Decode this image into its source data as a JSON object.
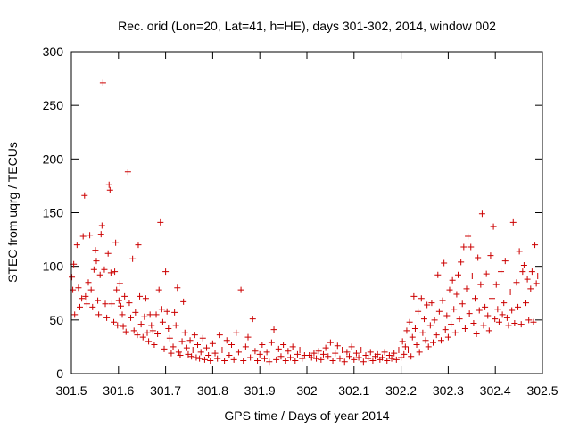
{
  "chart_data": {
    "type": "scatter",
    "title": "Rec. orid (Lon=20, Lat=41, h=HE), days 301-302, 2014, window 002",
    "xlabel": "GPS time / Days of year 2014",
    "ylabel": "STEC from uqrg / TECUs",
    "xlim": [
      301.5,
      302.5
    ],
    "ylim": [
      0,
      300
    ],
    "xticks": [
      "301.5",
      "301.6",
      "301.7",
      "301.8",
      "301.9",
      "302",
      "302.1",
      "302.2",
      "302.3",
      "302.4",
      "302.5"
    ],
    "yticks": [
      "0",
      "50",
      "100",
      "150",
      "200",
      "250",
      "300"
    ],
    "marker": "+",
    "color": "#cc0000",
    "grid": false,
    "points": [
      [
        301.501,
        90
      ],
      [
        301.503,
        78
      ],
      [
        301.505,
        102
      ],
      [
        301.507,
        55
      ],
      [
        301.512,
        120
      ],
      [
        301.515,
        80
      ],
      [
        301.518,
        62
      ],
      [
        301.522,
        70
      ],
      [
        301.525,
        128
      ],
      [
        301.528,
        166
      ],
      [
        301.53,
        72
      ],
      [
        301.533,
        65
      ],
      [
        301.536,
        85
      ],
      [
        301.539,
        129
      ],
      [
        301.542,
        78
      ],
      [
        301.545,
        62
      ],
      [
        301.548,
        97
      ],
      [
        301.551,
        115
      ],
      [
        301.553,
        105
      ],
      [
        301.556,
        68
      ],
      [
        301.558,
        55
      ],
      [
        301.561,
        92
      ],
      [
        301.563,
        130
      ],
      [
        301.565,
        138
      ],
      [
        301.567,
        271
      ],
      [
        301.57,
        97
      ],
      [
        301.572,
        65
      ],
      [
        301.575,
        52
      ],
      [
        301.578,
        112
      ],
      [
        301.58,
        176
      ],
      [
        301.582,
        171
      ],
      [
        301.584,
        94
      ],
      [
        301.586,
        65
      ],
      [
        301.59,
        48
      ],
      [
        301.592,
        95
      ],
      [
        301.594,
        122
      ],
      [
        301.596,
        78
      ],
      [
        301.598,
        45
      ],
      [
        301.601,
        68
      ],
      [
        301.603,
        84
      ],
      [
        301.605,
        63
      ],
      [
        301.608,
        55
      ],
      [
        301.61,
        44
      ],
      [
        301.613,
        72
      ],
      [
        301.616,
        39
      ],
      [
        301.62,
        188
      ],
      [
        301.623,
        66
      ],
      [
        301.626,
        52
      ],
      [
        301.63,
        107
      ],
      [
        301.633,
        40
      ],
      [
        301.636,
        57
      ],
      [
        301.64,
        36
      ],
      [
        301.642,
        120
      ],
      [
        301.645,
        72
      ],
      [
        301.648,
        46
      ],
      [
        301.652,
        34
      ],
      [
        301.655,
        53
      ],
      [
        301.658,
        70
      ],
      [
        301.661,
        38
      ],
      [
        301.664,
        30
      ],
      [
        301.667,
        55
      ],
      [
        301.67,
        45
      ],
      [
        301.673,
        40
      ],
      [
        301.676,
        27
      ],
      [
        301.68,
        55
      ],
      [
        301.683,
        37
      ],
      [
        301.686,
        78
      ],
      [
        301.689,
        141
      ],
      [
        301.692,
        60
      ],
      [
        301.694,
        48
      ],
      [
        301.697,
        23
      ],
      [
        301.7,
        95
      ],
      [
        301.703,
        58
      ],
      [
        301.706,
        42
      ],
      [
        301.709,
        33
      ],
      [
        301.712,
        19
      ],
      [
        301.716,
        25
      ],
      [
        301.719,
        57
      ],
      [
        301.722,
        45
      ],
      [
        301.725,
        80
      ],
      [
        301.728,
        20
      ],
      [
        301.731,
        17
      ],
      [
        301.735,
        30
      ],
      [
        301.738,
        67
      ],
      [
        301.741,
        38
      ],
      [
        301.745,
        24
      ],
      [
        301.748,
        18
      ],
      [
        301.752,
        31
      ],
      [
        301.755,
        16
      ],
      [
        301.758,
        22
      ],
      [
        301.762,
        36
      ],
      [
        301.765,
        15
      ],
      [
        301.768,
        27
      ],
      [
        301.772,
        14
      ],
      [
        301.775,
        20
      ],
      [
        301.779,
        33
      ],
      [
        301.783,
        13
      ],
      [
        301.787,
        24
      ],
      [
        301.791,
        17
      ],
      [
        301.795,
        12
      ],
      [
        301.8,
        28
      ],
      [
        301.805,
        19
      ],
      [
        301.81,
        14
      ],
      [
        301.815,
        36
      ],
      [
        301.82,
        22
      ],
      [
        301.825,
        12
      ],
      [
        301.83,
        31
      ],
      [
        301.835,
        17
      ],
      [
        301.84,
        27
      ],
      [
        301.845,
        13
      ],
      [
        301.85,
        38
      ],
      [
        301.855,
        20
      ],
      [
        301.86,
        78
      ],
      [
        301.865,
        12
      ],
      [
        301.87,
        25
      ],
      [
        301.875,
        34
      ],
      [
        301.88,
        15
      ],
      [
        301.885,
        51
      ],
      [
        301.89,
        21
      ],
      [
        301.895,
        12
      ],
      [
        301.9,
        18
      ],
      [
        301.905,
        27
      ],
      [
        301.91,
        14
      ],
      [
        301.915,
        20
      ],
      [
        301.92,
        11
      ],
      [
        301.925,
        29
      ],
      [
        301.93,
        41
      ],
      [
        301.935,
        13
      ],
      [
        301.94,
        23
      ],
      [
        301.945,
        16
      ],
      [
        301.95,
        27
      ],
      [
        301.955,
        12
      ],
      [
        301.96,
        21
      ],
      [
        301.965,
        15
      ],
      [
        301.97,
        25
      ],
      [
        301.975,
        12
      ],
      [
        301.98,
        18
      ],
      [
        301.985,
        22
      ],
      [
        301.99,
        14
      ],
      [
        301.995,
        17
      ],
      [
        302.005,
        17
      ],
      [
        302.01,
        15
      ],
      [
        302.015,
        19
      ],
      [
        302.02,
        14
      ],
      [
        302.025,
        21
      ],
      [
        302.03,
        13
      ],
      [
        302.035,
        18
      ],
      [
        302.04,
        24
      ],
      [
        302.045,
        16
      ],
      [
        302.05,
        29
      ],
      [
        302.055,
        12
      ],
      [
        302.06,
        19
      ],
      [
        302.065,
        26
      ],
      [
        302.07,
        14
      ],
      [
        302.075,
        22
      ],
      [
        302.08,
        11
      ],
      [
        302.085,
        20
      ],
      [
        302.09,
        16
      ],
      [
        302.095,
        25
      ],
      [
        302.1,
        13
      ],
      [
        302.105,
        19
      ],
      [
        302.11,
        15
      ],
      [
        302.115,
        22
      ],
      [
        302.12,
        11
      ],
      [
        302.125,
        17
      ],
      [
        302.13,
        14
      ],
      [
        302.135,
        20
      ],
      [
        302.14,
        12
      ],
      [
        302.145,
        16
      ],
      [
        302.15,
        18
      ],
      [
        302.155,
        13
      ],
      [
        302.16,
        15
      ],
      [
        302.165,
        20
      ],
      [
        302.17,
        12
      ],
      [
        302.175,
        17
      ],
      [
        302.18,
        14
      ],
      [
        302.185,
        19
      ],
      [
        302.19,
        13
      ],
      [
        302.195,
        22
      ],
      [
        302.2,
        15
      ],
      [
        302.203,
        30
      ],
      [
        302.206,
        18
      ],
      [
        302.209,
        25
      ],
      [
        302.212,
        40
      ],
      [
        302.215,
        22
      ],
      [
        302.218,
        48
      ],
      [
        302.221,
        16
      ],
      [
        302.224,
        34
      ],
      [
        302.227,
        72
      ],
      [
        302.23,
        42
      ],
      [
        302.233,
        27
      ],
      [
        302.236,
        58
      ],
      [
        302.239,
        20
      ],
      [
        302.243,
        70
      ],
      [
        302.246,
        38
      ],
      [
        302.249,
        51
      ],
      [
        302.252,
        31
      ],
      [
        302.255,
        64
      ],
      [
        302.258,
        25
      ],
      [
        302.262,
        45
      ],
      [
        302.265,
        66
      ],
      [
        302.268,
        29
      ],
      [
        302.271,
        50
      ],
      [
        302.275,
        36
      ],
      [
        302.278,
        92
      ],
      [
        302.281,
        58
      ],
      [
        302.285,
        31
      ],
      [
        302.288,
        68
      ],
      [
        302.291,
        103
      ],
      [
        302.294,
        41
      ],
      [
        302.297,
        54
      ],
      [
        302.3,
        34
      ],
      [
        302.303,
        78
      ],
      [
        302.306,
        46
      ],
      [
        302.309,
        87
      ],
      [
        302.312,
        60
      ],
      [
        302.315,
        38
      ],
      [
        302.318,
        74
      ],
      [
        302.321,
        92
      ],
      [
        302.324,
        51
      ],
      [
        302.327,
        104
      ],
      [
        302.33,
        65
      ],
      [
        302.333,
        118
      ],
      [
        302.336,
        42
      ],
      [
        302.339,
        79
      ],
      [
        302.342,
        128
      ],
      [
        302.345,
        56
      ],
      [
        302.348,
        118
      ],
      [
        302.351,
        91
      ],
      [
        302.354,
        47
      ],
      [
        302.357,
        70
      ],
      [
        302.36,
        37
      ],
      [
        302.363,
        108
      ],
      [
        302.366,
        59
      ],
      [
        302.369,
        83
      ],
      [
        302.372,
        149
      ],
      [
        302.375,
        45
      ],
      [
        302.378,
        62
      ],
      [
        302.381,
        93
      ],
      [
        302.384,
        54
      ],
      [
        302.387,
        40
      ],
      [
        302.39,
        110
      ],
      [
        302.393,
        70
      ],
      [
        302.396,
        137
      ],
      [
        302.399,
        51
      ],
      [
        302.402,
        83
      ],
      [
        302.405,
        60
      ],
      [
        302.408,
        48
      ],
      [
        302.412,
        95
      ],
      [
        302.415,
        55
      ],
      [
        302.418,
        66
      ],
      [
        302.421,
        105
      ],
      [
        302.425,
        52
      ],
      [
        302.428,
        45
      ],
      [
        302.432,
        76
      ],
      [
        302.435,
        59
      ],
      [
        302.438,
        141
      ],
      [
        302.441,
        47
      ],
      [
        302.445,
        85
      ],
      [
        302.448,
        62
      ],
      [
        302.451,
        114
      ],
      [
        302.455,
        46
      ],
      [
        302.458,
        95
      ],
      [
        302.461,
        101
      ],
      [
        302.465,
        66
      ],
      [
        302.468,
        88
      ],
      [
        302.471,
        50
      ],
      [
        302.475,
        79
      ],
      [
        302.478,
        95
      ],
      [
        302.481,
        48
      ],
      [
        302.484,
        120
      ],
      [
        302.487,
        84
      ],
      [
        302.49,
        91
      ]
    ]
  }
}
